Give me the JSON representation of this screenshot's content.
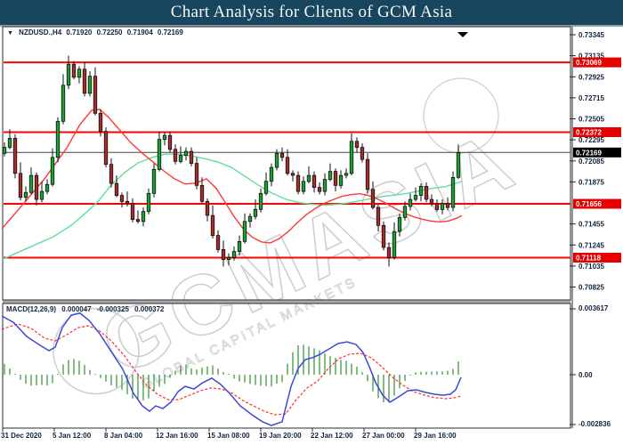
{
  "title_bar": {
    "title": "Chart Analysis for Clients of GCM Asia"
  },
  "chart_header": {
    "collapse_icon": "▼",
    "symbol": "NZDUSD.,H4",
    "open": "0.71920",
    "high": "0.72250",
    "low": "0.71904",
    "close": "0.72169"
  },
  "watermark": {
    "brand": "GCMASIA",
    "subtitle": "GLOBAL CAPITAL MARKETS"
  },
  "price_axis": {
    "ticks": [
      "0.73345",
      "0.73135",
      "0.72925",
      "0.72715",
      "0.72505",
      "0.72295",
      "0.72085",
      "0.71875",
      "0.71455",
      "0.71245",
      "0.71035",
      "0.70825"
    ],
    "badges": [
      {
        "label": "0.73069",
        "value": 0.73069,
        "type": "resistance"
      },
      {
        "label": "0.72372",
        "value": 0.72372,
        "type": "resistance"
      },
      {
        "label": "0.72169",
        "value": 0.72169,
        "type": "current"
      },
      {
        "label": "0.71656",
        "value": 0.71656,
        "type": "support"
      },
      {
        "label": "0.71118",
        "value": 0.71118,
        "type": "support"
      }
    ]
  },
  "time_axis": {
    "labels": [
      "31 Dec 2020",
      "5 Jan 12:00",
      "8 Jan 04:00",
      "12 Jan 16:00",
      "15 Jan 08:00",
      "19 Jan 20:00",
      "22 Jan 12:00",
      "27 Jan 00:00",
      "29 Jan 16:00"
    ]
  },
  "macd_header": {
    "label": "MACD(12,26,9)",
    "values": [
      "0.000047",
      "-0.000325",
      "0.000372"
    ]
  },
  "macd_axis": {
    "top": "0.003617",
    "zero": "0.00",
    "bottom": "-0.002836"
  },
  "colors": {
    "titlebar": "#17465e",
    "bull": "#1ea035",
    "bear": "#a52f2f",
    "wick": "#111111",
    "ma_fast_green": "#5ee09a",
    "ma_slow_red": "#ff3838",
    "level_line": "#fb0207",
    "current_line": "#444444",
    "macd_line": "#3d48dd",
    "macd_signal": "#ff2e2e",
    "macd_hist": "#2f8f2f",
    "badge_red": "#e60000",
    "badge_black": "#000000",
    "axis_text": "#10233d",
    "watermark": "#cdcdcd",
    "border": "#2b2b2b"
  },
  "chart_data": {
    "type": "candlestick+macd",
    "symbol": "NZDUSD",
    "timeframe": "H4",
    "price_lines": {
      "resistance": [
        0.73069,
        0.72372
      ],
      "support": [
        0.71656,
        0.71118
      ],
      "current": 0.72169
    },
    "candles": [
      [
        0.7216,
        0.7227,
        0.7213,
        0.7222
      ],
      [
        0.7222,
        0.724,
        0.722,
        0.7231
      ],
      [
        0.7231,
        0.7235,
        0.7191,
        0.7196
      ],
      [
        0.7196,
        0.7207,
        0.7169,
        0.7172
      ],
      [
        0.7172,
        0.7183,
        0.7168,
        0.7177
      ],
      [
        0.7177,
        0.7202,
        0.7175,
        0.7194
      ],
      [
        0.7194,
        0.7197,
        0.7164,
        0.717
      ],
      [
        0.717,
        0.7188,
        0.7167,
        0.7178
      ],
      [
        0.7178,
        0.719,
        0.7175,
        0.7185
      ],
      [
        0.7185,
        0.7221,
        0.7183,
        0.7212
      ],
      [
        0.7212,
        0.7252,
        0.7207,
        0.7248
      ],
      [
        0.7248,
        0.7295,
        0.7245,
        0.7284
      ],
      [
        0.7284,
        0.73135,
        0.728,
        0.7305
      ],
      [
        0.7305,
        0.7308,
        0.729,
        0.7292
      ],
      [
        0.7292,
        0.7303,
        0.7286,
        0.73
      ],
      [
        0.73,
        0.7307,
        0.7273,
        0.7276
      ],
      [
        0.7276,
        0.7298,
        0.7273,
        0.7293
      ],
      [
        0.7293,
        0.7302,
        0.7254,
        0.7256
      ],
      [
        0.7256,
        0.726,
        0.7233,
        0.7238
      ],
      [
        0.7238,
        0.7242,
        0.7202,
        0.7205
      ],
      [
        0.7205,
        0.7211,
        0.7182,
        0.7186
      ],
      [
        0.7186,
        0.7194,
        0.7172,
        0.7174
      ],
      [
        0.7174,
        0.7177,
        0.7162,
        0.7168
      ],
      [
        0.7168,
        0.7178,
        0.7163,
        0.7166
      ],
      [
        0.7166,
        0.7171,
        0.7147,
        0.715
      ],
      [
        0.715,
        0.7159,
        0.7146,
        0.7148
      ],
      [
        0.7148,
        0.7162,
        0.7143,
        0.7158
      ],
      [
        0.7158,
        0.7181,
        0.7155,
        0.7176
      ],
      [
        0.7176,
        0.7206,
        0.7172,
        0.72
      ],
      [
        0.72,
        0.7238,
        0.7198,
        0.723
      ],
      [
        0.723,
        0.7237,
        0.7224,
        0.7234
      ],
      [
        0.7234,
        0.7238,
        0.7217,
        0.722
      ],
      [
        0.722,
        0.7225,
        0.7205,
        0.7208
      ],
      [
        0.7208,
        0.7223,
        0.7206,
        0.7214
      ],
      [
        0.7214,
        0.7222,
        0.7209,
        0.7218
      ],
      [
        0.7218,
        0.7222,
        0.7203,
        0.7206
      ],
      [
        0.7206,
        0.7212,
        0.718,
        0.7184
      ],
      [
        0.7184,
        0.7192,
        0.7166,
        0.7168
      ],
      [
        0.7168,
        0.7171,
        0.7148,
        0.7154
      ],
      [
        0.7154,
        0.7164,
        0.7131,
        0.7134
      ],
      [
        0.7134,
        0.7139,
        0.7117,
        0.712
      ],
      [
        0.712,
        0.7129,
        0.7103,
        0.711
      ],
      [
        0.711,
        0.7116,
        0.7104,
        0.7112
      ],
      [
        0.7112,
        0.7123,
        0.7109,
        0.7118
      ],
      [
        0.7118,
        0.7134,
        0.7114,
        0.7128
      ],
      [
        0.7128,
        0.7156,
        0.7126,
        0.7148
      ],
      [
        0.7148,
        0.7156,
        0.7142,
        0.7153
      ],
      [
        0.7153,
        0.717,
        0.715,
        0.716
      ],
      [
        0.716,
        0.7181,
        0.7157,
        0.7176
      ],
      [
        0.7176,
        0.7197,
        0.7174,
        0.7188
      ],
      [
        0.7188,
        0.7206,
        0.7183,
        0.7202
      ],
      [
        0.7202,
        0.722,
        0.7199,
        0.7216
      ],
      [
        0.7216,
        0.7222,
        0.7208,
        0.7212
      ],
      [
        0.7212,
        0.722,
        0.7194,
        0.7196
      ],
      [
        0.7196,
        0.7199,
        0.7188,
        0.7194
      ],
      [
        0.7194,
        0.7198,
        0.7175,
        0.7178
      ],
      [
        0.7178,
        0.7193,
        0.7175,
        0.7188
      ],
      [
        0.7188,
        0.7203,
        0.7186,
        0.7194
      ],
      [
        0.7194,
        0.7198,
        0.7177,
        0.7182
      ],
      [
        0.7182,
        0.7187,
        0.7175,
        0.7178
      ],
      [
        0.7178,
        0.7196,
        0.7174,
        0.719
      ],
      [
        0.719,
        0.7206,
        0.7188,
        0.7198
      ],
      [
        0.7198,
        0.7201,
        0.7178,
        0.7184
      ],
      [
        0.7184,
        0.7199,
        0.7181,
        0.7194
      ],
      [
        0.7194,
        0.7201,
        0.7191,
        0.7196
      ],
      [
        0.7196,
        0.7236,
        0.7194,
        0.7228
      ],
      [
        0.7228,
        0.7232,
        0.7217,
        0.7222
      ],
      [
        0.7222,
        0.7226,
        0.7207,
        0.721
      ],
      [
        0.721,
        0.7216,
        0.7176,
        0.718
      ],
      [
        0.718,
        0.7188,
        0.716,
        0.7162
      ],
      [
        0.7162,
        0.7165,
        0.7138,
        0.7144
      ],
      [
        0.7144,
        0.7148,
        0.7119,
        0.7122
      ],
      [
        0.7122,
        0.7127,
        0.7103,
        0.7112
      ],
      [
        0.7112,
        0.7147,
        0.711,
        0.7138
      ],
      [
        0.7138,
        0.7156,
        0.7133,
        0.7152
      ],
      [
        0.7152,
        0.7168,
        0.7149,
        0.7163
      ],
      [
        0.7163,
        0.7176,
        0.7159,
        0.717
      ],
      [
        0.717,
        0.7182,
        0.7168,
        0.7174
      ],
      [
        0.7174,
        0.7186,
        0.7168,
        0.7183
      ],
      [
        0.7183,
        0.7187,
        0.7167,
        0.717
      ],
      [
        0.717,
        0.7175,
        0.7163,
        0.7166
      ],
      [
        0.7166,
        0.717,
        0.7158,
        0.716
      ],
      [
        0.716,
        0.717,
        0.7155,
        0.7166
      ],
      [
        0.7166,
        0.7172,
        0.7159,
        0.7162
      ],
      [
        0.7162,
        0.7198,
        0.7158,
        0.7192
      ],
      [
        0.7192,
        0.7225,
        0.71904,
        0.72169
      ]
    ],
    "ma_fast_green": [
      [
        2,
        0.71099
      ],
      [
        20,
        0.7117
      ],
      [
        40,
        0.71249
      ],
      [
        60,
        0.71327
      ],
      [
        80,
        0.71441
      ],
      [
        95,
        0.71556
      ],
      [
        110,
        0.71678
      ],
      [
        125,
        0.71845
      ],
      [
        140,
        0.71968
      ],
      [
        155,
        0.72064
      ],
      [
        170,
        0.72117
      ],
      [
        185,
        0.72152
      ],
      [
        200,
        0.72152
      ],
      [
        215,
        0.72134
      ],
      [
        230,
        0.72108
      ],
      [
        245,
        0.72073
      ],
      [
        260,
        0.7202
      ],
      [
        275,
        0.71933
      ],
      [
        290,
        0.71845
      ],
      [
        305,
        0.71766
      ],
      [
        320,
        0.71705
      ],
      [
        335,
        0.7167
      ],
      [
        350,
        0.71652
      ],
      [
        365,
        0.71643
      ],
      [
        380,
        0.71652
      ],
      [
        395,
        0.7167
      ],
      [
        410,
        0.71696
      ],
      [
        425,
        0.71722
      ],
      [
        440,
        0.7174
      ],
      [
        455,
        0.71757
      ],
      [
        470,
        0.71783
      ],
      [
        485,
        0.7181
      ],
      [
        500,
        0.71827
      ],
      [
        510,
        0.71854
      ],
      [
        519,
        0.7188
      ]
    ],
    "ma_slow_red": [
      [
        2,
        0.71406
      ],
      [
        25,
        0.71643
      ],
      [
        50,
        0.71906
      ],
      [
        75,
        0.72213
      ],
      [
        90,
        0.7245
      ],
      [
        103,
        0.7259
      ],
      [
        112,
        0.72599
      ],
      [
        122,
        0.7252
      ],
      [
        134,
        0.72398
      ],
      [
        147,
        0.72266
      ],
      [
        160,
        0.72161
      ],
      [
        172,
        0.72073
      ],
      [
        184,
        0.71985
      ],
      [
        196,
        0.71906
      ],
      [
        208,
        0.71854
      ],
      [
        220,
        0.71863
      ],
      [
        232,
        0.71906
      ],
      [
        243,
        0.7181
      ],
      [
        253,
        0.7167
      ],
      [
        263,
        0.71529
      ],
      [
        274,
        0.71398
      ],
      [
        284,
        0.71319
      ],
      [
        294,
        0.71275
      ],
      [
        304,
        0.71266
      ],
      [
        314,
        0.7131
      ],
      [
        324,
        0.7138
      ],
      [
        334,
        0.71468
      ],
      [
        344,
        0.71547
      ],
      [
        354,
        0.71608
      ],
      [
        364,
        0.71661
      ],
      [
        374,
        0.71696
      ],
      [
        384,
        0.71731
      ],
      [
        394,
        0.71748
      ],
      [
        404,
        0.71757
      ],
      [
        414,
        0.7174
      ],
      [
        424,
        0.71705
      ],
      [
        434,
        0.71661
      ],
      [
        444,
        0.71608
      ],
      [
        454,
        0.71564
      ],
      [
        464,
        0.71529
      ],
      [
        474,
        0.71503
      ],
      [
        484,
        0.71485
      ],
      [
        494,
        0.71476
      ],
      [
        504,
        0.71485
      ],
      [
        513,
        0.71512
      ],
      [
        519,
        0.71538
      ]
    ],
    "macd": {
      "line": [
        [
          2,
          0.00318
        ],
        [
          15,
          0.00284
        ],
        [
          30,
          0.00207
        ],
        [
          45,
          0.00159
        ],
        [
          55,
          0.0013
        ],
        [
          62,
          0.00149
        ],
        [
          70,
          0.00255
        ],
        [
          80,
          0.00323
        ],
        [
          90,
          0.00333
        ],
        [
          100,
          0.00294
        ],
        [
          112,
          0.00222
        ],
        [
          125,
          0.00125
        ],
        [
          138,
          0.00029
        ],
        [
          150,
          -0.00101
        ],
        [
          160,
          -0.00169
        ],
        [
          168,
          -0.00198
        ],
        [
          175,
          -0.00169
        ],
        [
          183,
          -0.00183
        ],
        [
          192,
          -0.00149
        ],
        [
          200,
          -0.00092
        ],
        [
          208,
          -0.00063
        ],
        [
          218,
          -0.00077
        ],
        [
          228,
          -0.00043
        ],
        [
          238,
          -0.00019
        ],
        [
          248,
          -0.00053
        ],
        [
          258,
          -0.00101
        ],
        [
          270,
          -0.00169
        ],
        [
          283,
          -0.00217
        ],
        [
          295,
          -0.00255
        ],
        [
          305,
          -0.00275
        ],
        [
          317,
          -0.00255
        ],
        [
          327,
          -0.00063
        ],
        [
          335,
          0.00034
        ],
        [
          343,
          0.00082
        ],
        [
          351,
          0.00092
        ],
        [
          360,
          0.00111
        ],
        [
          370,
          0.0014
        ],
        [
          380,
          0.00169
        ],
        [
          390,
          0.00178
        ],
        [
          400,
          0.00164
        ],
        [
          408,
          0.0012
        ],
        [
          415,
          0.00043
        ],
        [
          422,
          -0.00043
        ],
        [
          430,
          -0.00111
        ],
        [
          438,
          -0.00149
        ],
        [
          448,
          -0.0012
        ],
        [
          458,
          -0.00087
        ],
        [
          468,
          -0.00082
        ],
        [
          478,
          -0.00096
        ],
        [
          488,
          -0.00106
        ],
        [
          498,
          -0.00111
        ],
        [
          506,
          -0.00106
        ],
        [
          512,
          -0.00082
        ],
        [
          518,
          -0.00014
        ]
      ],
      "signal": [
        [
          2,
          0.00246
        ],
        [
          20,
          0.00275
        ],
        [
          35,
          0.00251
        ],
        [
          50,
          0.00198
        ],
        [
          62,
          0.00183
        ],
        [
          75,
          0.00217
        ],
        [
          88,
          0.00255
        ],
        [
          100,
          0.00265
        ],
        [
          112,
          0.00236
        ],
        [
          125,
          0.00183
        ],
        [
          140,
          0.00101
        ],
        [
          153,
          0.00014
        ],
        [
          165,
          -0.00058
        ],
        [
          177,
          -0.00106
        ],
        [
          189,
          -0.00135
        ],
        [
          201,
          -0.00135
        ],
        [
          213,
          -0.00111
        ],
        [
          225,
          -0.00087
        ],
        [
          237,
          -0.00072
        ],
        [
          249,
          -0.00077
        ],
        [
          261,
          -0.00101
        ],
        [
          273,
          -0.0014
        ],
        [
          285,
          -0.00169
        ],
        [
          297,
          -0.00198
        ],
        [
          309,
          -0.00217
        ],
        [
          321,
          -0.00212
        ],
        [
          333,
          -0.00135
        ],
        [
          345,
          -0.00072
        ],
        [
          357,
          -0.00034
        ],
        [
          369,
          0.00034
        ],
        [
          381,
          0.00087
        ],
        [
          393,
          0.00111
        ],
        [
          405,
          0.00116
        ],
        [
          417,
          0.00092
        ],
        [
          429,
          0.00043
        ],
        [
          441,
          -0.00014
        ],
        [
          453,
          -0.00058
        ],
        [
          465,
          -0.00092
        ],
        [
          477,
          -0.00111
        ],
        [
          489,
          -0.00125
        ],
        [
          501,
          -0.0013
        ],
        [
          511,
          -0.00125
        ],
        [
          518,
          -0.00116
        ]
      ],
      "axis_range": [
        -0.002836,
        0.003617
      ]
    }
  }
}
